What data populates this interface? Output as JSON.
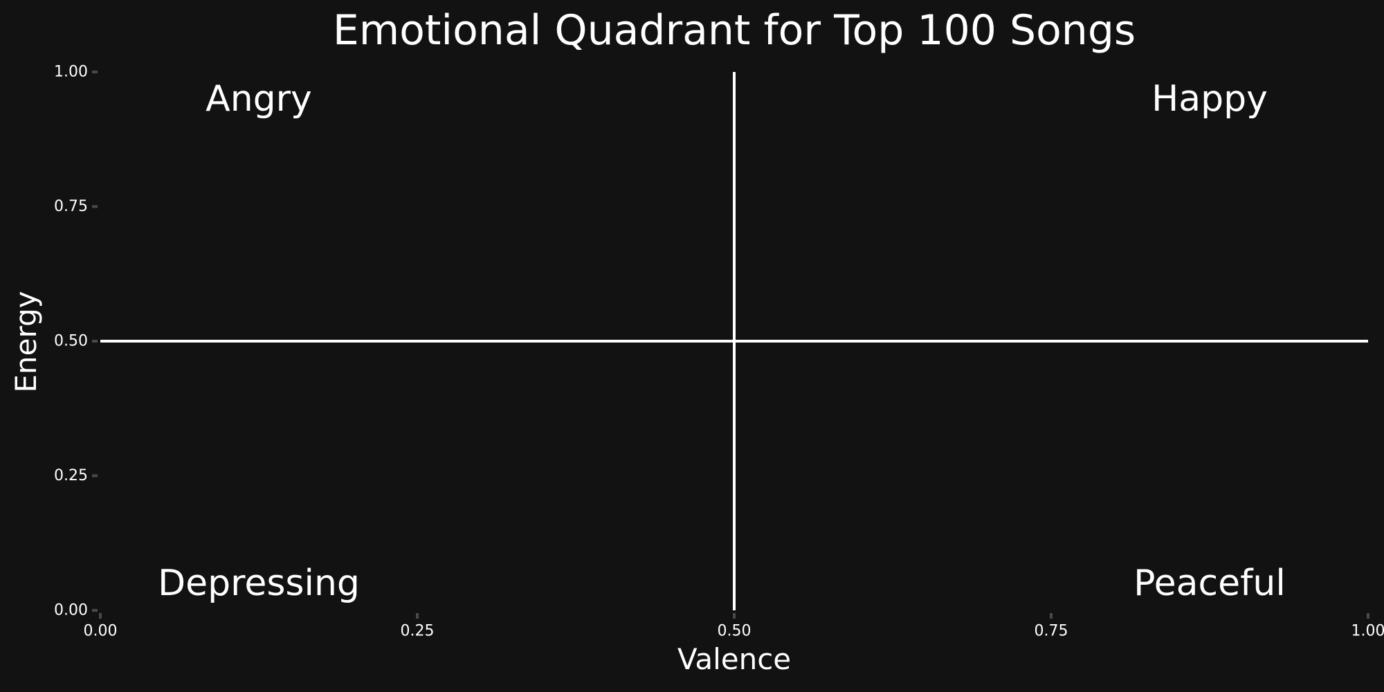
{
  "chart_data": {
    "type": "scatter",
    "title": "Emotional Quadrant for Top 100 Songs",
    "xlabel": "Valence",
    "ylabel": "Energy",
    "xlim": [
      0,
      1
    ],
    "ylim": [
      0,
      1
    ],
    "x_ticks": [
      0,
      0.25,
      0.5,
      0.75,
      1
    ],
    "x_tick_labels": [
      "0.00",
      "0.25",
      "0.50",
      "0.75",
      "1.00"
    ],
    "y_ticks": [
      0,
      0.25,
      0.5,
      0.75,
      1
    ],
    "y_tick_labels": [
      "0.00",
      "0.25",
      "0.50",
      "0.75",
      "1.00"
    ],
    "grid": false,
    "reference_lines": {
      "vertical_x": 0.5,
      "horizontal_y": 0.5
    },
    "annotations": [
      {
        "text": "Angry",
        "x": 0.125,
        "y": 0.95
      },
      {
        "text": "Happy",
        "x": 0.875,
        "y": 0.95
      },
      {
        "text": "Depressing",
        "x": 0.125,
        "y": 0.05
      },
      {
        "text": "Peaceful",
        "x": 0.875,
        "y": 0.05
      }
    ],
    "series": [],
    "colors": {
      "background": "#121212",
      "text": "#ffffff",
      "reference_line": "#ffffff",
      "tick_mark": "#4a4a4a"
    }
  }
}
